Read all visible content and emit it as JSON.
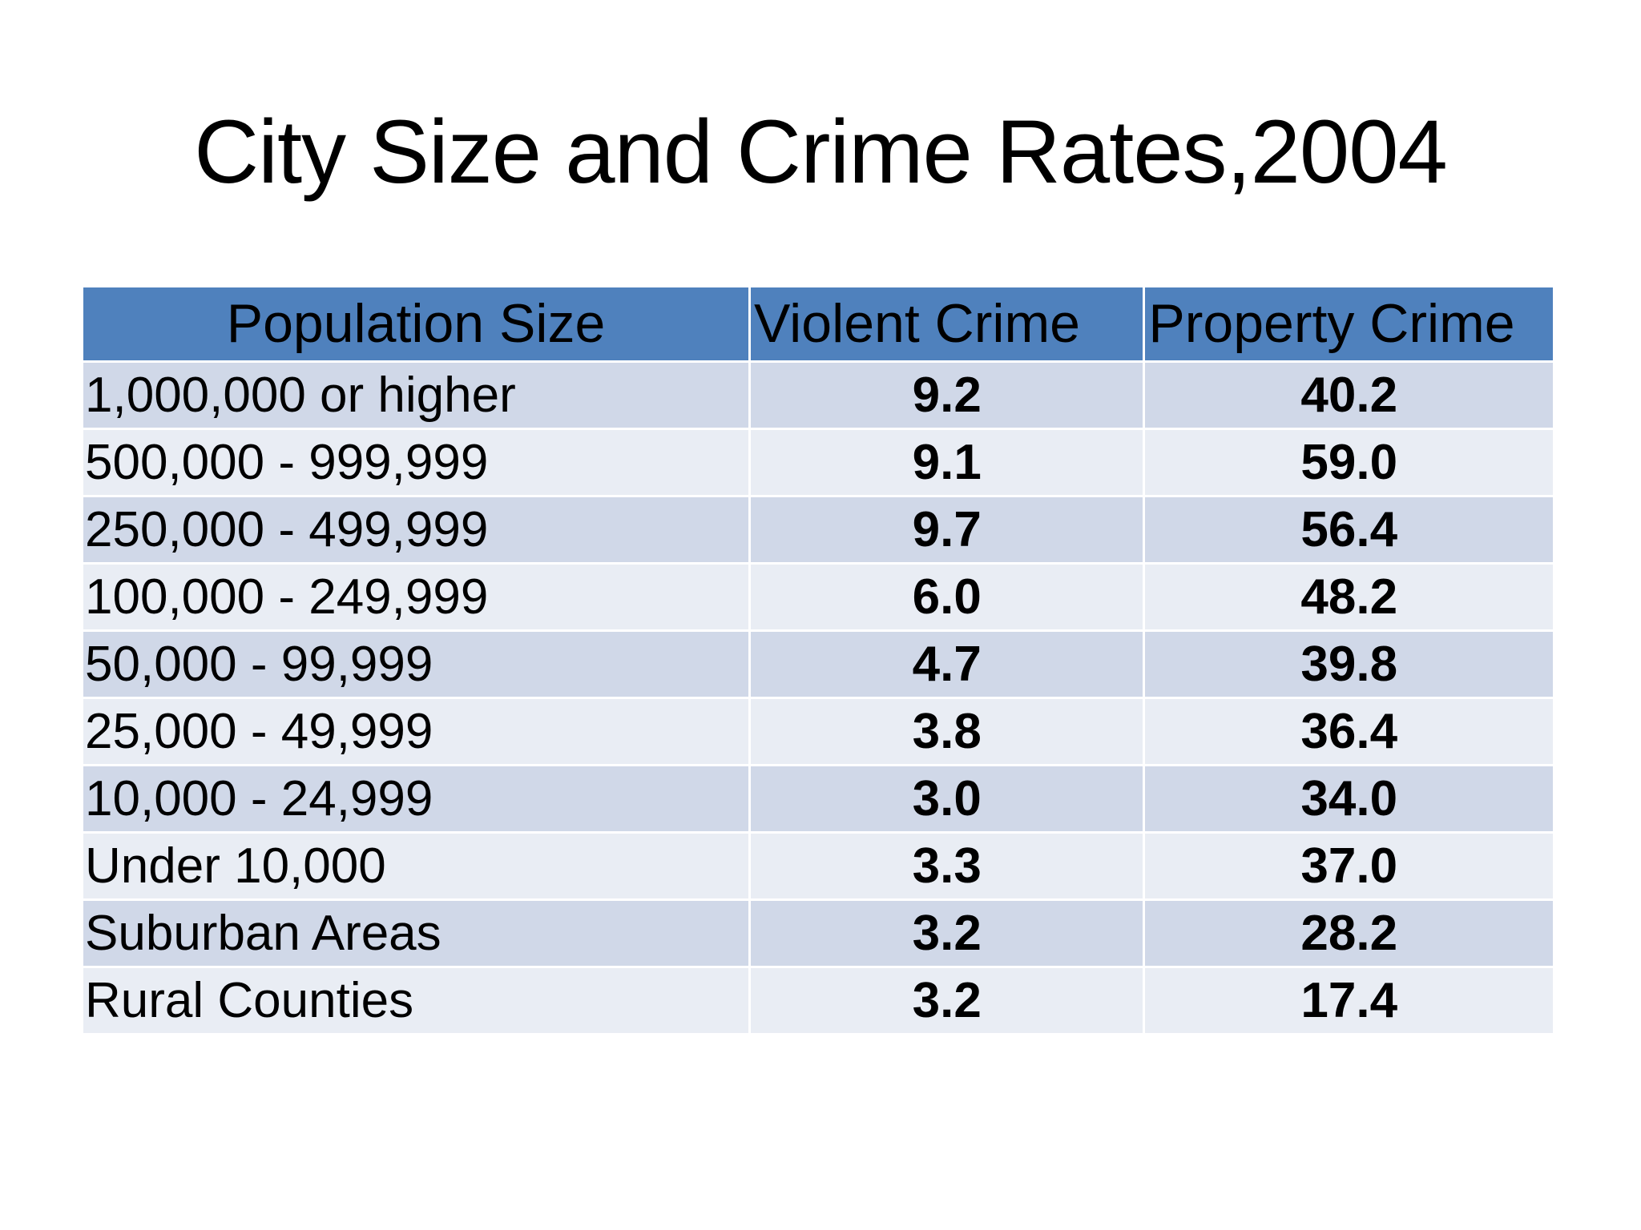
{
  "slide": {
    "title": "City Size and Crime Rates,2004"
  },
  "table": {
    "headers": [
      "Population Size",
      "Violent Crime",
      "Property Crime"
    ],
    "rows": [
      {
        "population": "1,000,000 or higher",
        "violent": "9.2",
        "property": "40.2"
      },
      {
        "population": "500,000 - 999,999",
        "violent": "9.1",
        "property": "59.0"
      },
      {
        "population": "250,000 - 499,999",
        "violent": "9.7",
        "property": "56.4"
      },
      {
        "population": "100,000 - 249,999",
        "violent": "6.0",
        "property": "48.2"
      },
      {
        "population": "50,000 - 99,999",
        "violent": "4.7",
        "property": "39.8"
      },
      {
        "population": "25,000 - 49,999",
        "violent": "3.8",
        "property": "36.4"
      },
      {
        "population": "10,000 - 24,999",
        "violent": "3.0",
        "property": "34.0"
      },
      {
        "population": "Under 10,000",
        "violent": "3.3",
        "property": "37.0"
      },
      {
        "population": "Suburban Areas",
        "violent": "3.2",
        "property": "28.2"
      },
      {
        "population": "Rural Counties",
        "violent": "3.2",
        "property": "17.4"
      }
    ]
  },
  "colors": {
    "header_fill": "#4f81bd",
    "row_odd_fill": "#d0d8e8",
    "row_even_fill": "#e9edf4"
  }
}
